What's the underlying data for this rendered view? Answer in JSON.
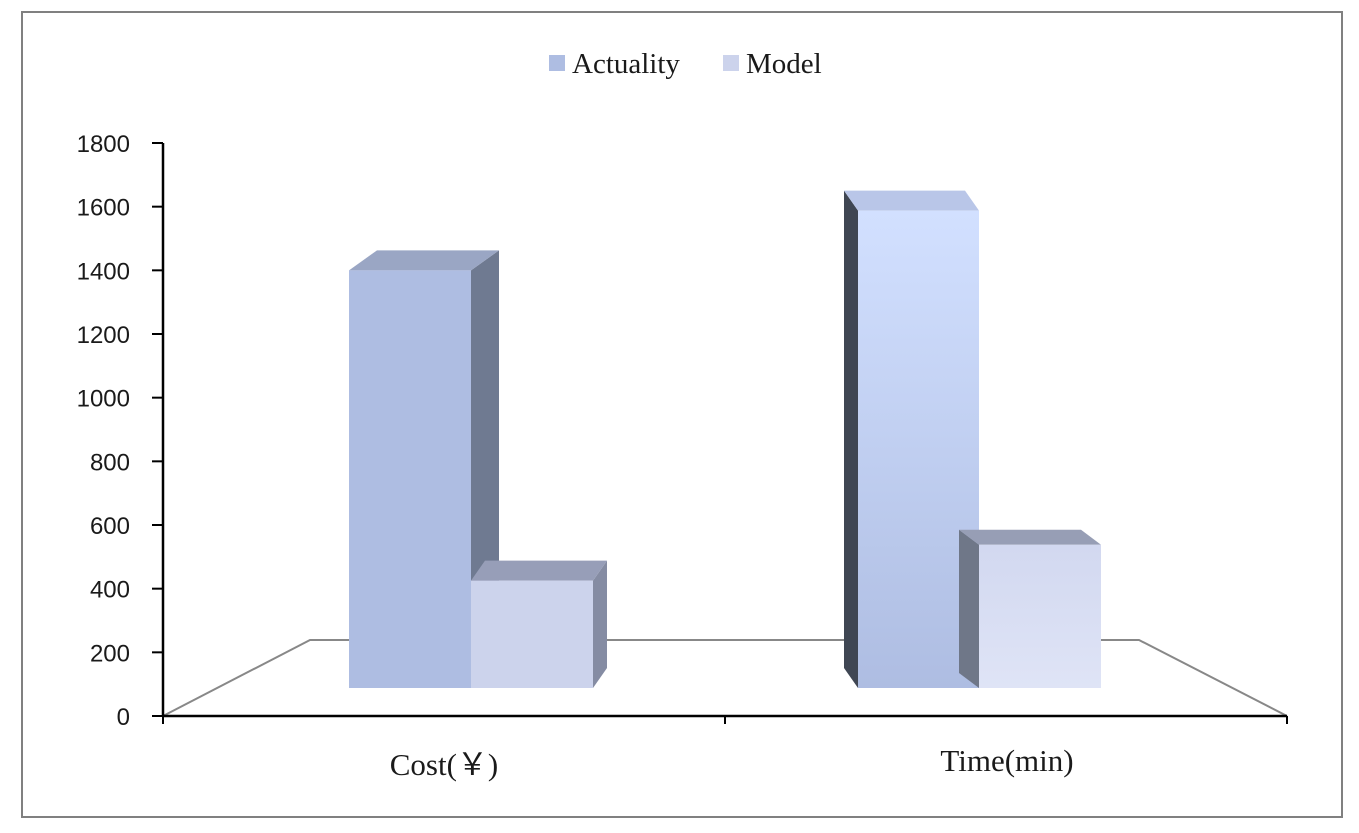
{
  "chart_data": {
    "type": "bar",
    "categories": [
      "Cost(￥)",
      "Time(min)"
    ],
    "series": [
      {
        "name": "Actuality",
        "values": [
          1400,
          1600
        ],
        "color": "#aebde2"
      },
      {
        "name": "Model",
        "values": [
          360,
          480
        ],
        "color": "#ccd3ec"
      }
    ],
    "ylim": [
      0,
      1800
    ],
    "yticks": [
      0,
      200,
      400,
      600,
      800,
      1000,
      1200,
      1400,
      1600,
      1800
    ],
    "legend_position": "top-center",
    "grid": false,
    "projection": "3d"
  }
}
